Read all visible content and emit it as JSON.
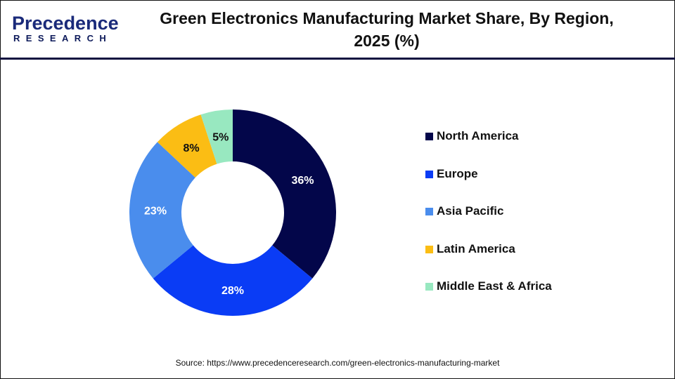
{
  "logo": {
    "main": "Precedence",
    "sub": "RESEARCH"
  },
  "chart_data": {
    "type": "pie",
    "subtype": "donut",
    "title": "Green Electronics Manufacturing Market Share, By Region, 2025 (%)",
    "categories": [
      "North America",
      "Europe",
      "Asia Pacific",
      "Latin America",
      "Middle East & Africa"
    ],
    "values": [
      36,
      28,
      23,
      8,
      5
    ],
    "labels": [
      "36%",
      "28%",
      "23%",
      "8%",
      "5%"
    ],
    "colors": [
      "#03064a",
      "#0a3cf5",
      "#4a8ded",
      "#fbbd14",
      "#98e8c0"
    ],
    "label_colors": [
      "#ffffff",
      "#ffffff",
      "#ffffff",
      "#111111",
      "#111111"
    ],
    "legend_position": "right"
  },
  "source": "Source: https://www.precedenceresearch.com/green-electronics-manufacturing-market"
}
